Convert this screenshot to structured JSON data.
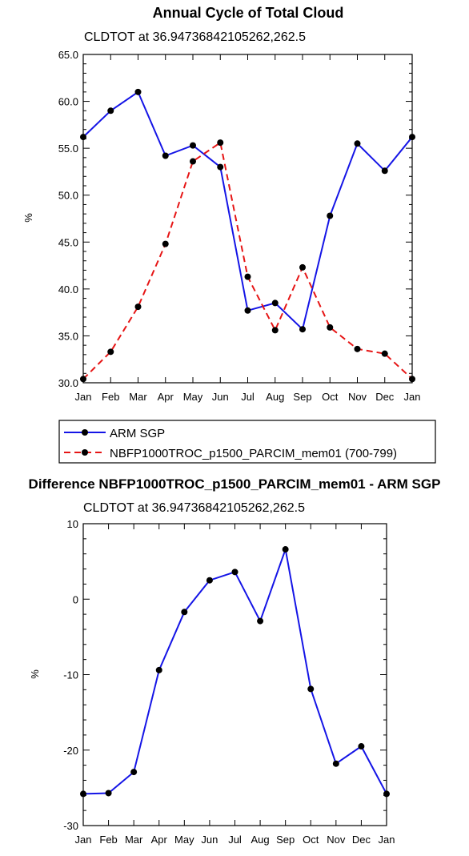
{
  "chart_data": [
    {
      "type": "line",
      "title": "Annual Cycle of Total Cloud",
      "subtitle": "CLDTOT at 36.94736842105262,262.5",
      "ylabel": "%",
      "ylim": [
        30,
        65
      ],
      "yticks": [
        "30.0",
        "35.0",
        "40.0",
        "45.0",
        "50.0",
        "55.0",
        "60.0",
        "65.0"
      ],
      "ytick_values": [
        30,
        35,
        40,
        45,
        50,
        55,
        60,
        65
      ],
      "categories": [
        "Jan",
        "Feb",
        "Mar",
        "Apr",
        "May",
        "Jun",
        "Jul",
        "Aug",
        "Sep",
        "Oct",
        "Nov",
        "Dec",
        "Jan"
      ],
      "legend_position": "bottom",
      "series": [
        {
          "name": "ARM SGP",
          "color": "#1515e6",
          "dash": "solid",
          "values": [
            56.2,
            59.0,
            61.0,
            54.2,
            55.3,
            53.0,
            37.7,
            38.5,
            35.7,
            47.8,
            55.5,
            52.6,
            56.2
          ]
        },
        {
          "name": "NBFP1000TROC_p1500_PARCIM_mem01 (700-799)",
          "color": "#e61515",
          "dash": "dashed",
          "values": [
            30.4,
            33.3,
            38.1,
            44.8,
            53.6,
            55.6,
            41.3,
            35.6,
            42.3,
            35.9,
            33.6,
            33.1,
            30.4
          ]
        }
      ]
    },
    {
      "type": "line",
      "title": "Difference NBFP1000TROC_p1500_PARCIM_mem01 - ARM SGP",
      "subtitle": "CLDTOT at 36.94736842105262,262.5",
      "ylabel": "%",
      "ylim": [
        -30,
        10
      ],
      "yticks": [
        "-30",
        "-20",
        "-10",
        "0",
        "10"
      ],
      "ytick_values": [
        -30,
        -20,
        -10,
        0,
        10
      ],
      "categories": [
        "Jan",
        "Feb",
        "Mar",
        "Apr",
        "May",
        "Jun",
        "Jul",
        "Aug",
        "Sep",
        "Oct",
        "Nov",
        "Dec",
        "Jan"
      ],
      "series": [
        {
          "color": "#1515e6",
          "dash": "solid",
          "values": [
            -25.8,
            -25.7,
            -22.9,
            -9.4,
            -1.7,
            2.5,
            3.6,
            -2.9,
            6.6,
            -11.9,
            -21.8,
            -19.5,
            -25.8
          ]
        }
      ]
    }
  ]
}
